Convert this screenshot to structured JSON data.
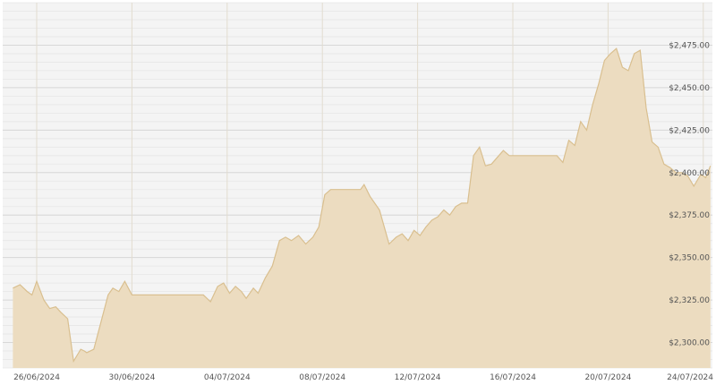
{
  "chart_data": {
    "type": "area",
    "title": "",
    "xlabel": "",
    "ylabel": "",
    "x_tick_labels": [
      "26/06/2024",
      "30/06/2024",
      "04/07/2024",
      "08/07/2024",
      "12/07/2024",
      "16/07/2024",
      "20/07/2024",
      "24/07/2024"
    ],
    "y_tick_labels": [
      "$2,300.00",
      "$2,325.00",
      "$2,350.00",
      "$2,375.00",
      "$2,400.00",
      "$2,425.00",
      "$2,450.00",
      "$2,475.00"
    ],
    "y_ticks": [
      2300,
      2325,
      2350,
      2375,
      2400,
      2425,
      2450,
      2475
    ],
    "ylim": [
      2285,
      2500
    ],
    "xlim_days": [
      -1,
      28.3
    ],
    "grid": true,
    "colors": {
      "fill": "#ecdcc0",
      "line": "#d9bf8f",
      "grid_major": "#d8d8d8",
      "grid_minor": "#e6e6e6",
      "background": "#f4f4f4",
      "vertical_grid": "#e2dccf"
    },
    "series": [
      {
        "x": [
          -1.0,
          -0.7,
          -0.4,
          -0.2,
          0.0,
          0.3,
          0.55,
          0.8,
          1.0,
          1.3,
          1.55,
          1.85,
          2.0,
          2.1,
          2.4,
          2.7,
          3.0,
          3.2,
          3.45,
          3.7,
          4.0,
          4.4,
          4.7,
          5.0,
          5.5,
          6.0,
          6.5,
          7.0,
          7.3,
          7.6,
          7.85,
          8.1,
          8.35,
          8.6,
          8.8,
          9.1,
          9.3,
          9.6,
          9.9,
          10.2,
          10.45,
          10.7,
          11.0,
          11.3,
          11.6,
          11.85,
          12.1,
          12.35,
          12.6,
          12.85,
          13.1,
          13.35,
          13.6,
          13.75,
          14.0,
          14.4,
          14.8,
          15.1,
          15.35,
          15.6,
          15.85,
          16.1,
          16.35,
          16.6,
          16.85,
          17.1,
          17.35,
          17.6,
          17.85,
          18.1,
          18.35,
          18.6,
          18.85,
          19.1,
          19.35,
          19.6,
          19.85,
          20.1,
          20.35,
          20.6,
          20.85,
          21.1,
          21.35,
          21.6,
          21.85,
          22.1,
          22.35,
          22.6,
          22.85,
          23.1,
          23.35,
          23.6,
          23.85,
          24.1,
          24.35,
          24.6,
          24.85,
          25.1,
          25.35,
          25.6,
          25.85,
          26.1,
          26.35,
          26.6,
          26.85,
          27.1,
          27.35,
          27.6,
          27.9,
          28.1,
          28.3
        ],
        "values": [
          2332,
          2334,
          2330,
          2328,
          2336,
          2325,
          2320,
          2321,
          2318,
          2314,
          2289,
          2296,
          2295,
          2294,
          2296,
          2312,
          2328,
          2332,
          2330,
          2336,
          2328,
          2328,
          2328,
          2328,
          2328,
          2328,
          2328,
          2328,
          2324,
          2333,
          2335,
          2329,
          2333,
          2330,
          2326,
          2332,
          2329,
          2338,
          2345,
          2360,
          2362,
          2360,
          2363,
          2358,
          2362,
          2368,
          2387,
          2390,
          2390,
          2390,
          2390,
          2390,
          2390,
          2393,
          2386,
          2378,
          2358,
          2362,
          2364,
          2360,
          2366,
          2363,
          2368,
          2372,
          2374,
          2378,
          2375,
          2380,
          2382,
          2382,
          2410,
          2415,
          2404,
          2405,
          2409,
          2413,
          2410,
          2410,
          2410,
          2410,
          2410,
          2410,
          2410,
          2410,
          2410,
          2406,
          2419,
          2416,
          2430,
          2425,
          2440,
          2452,
          2466,
          2470,
          2473,
          2462,
          2460,
          2470,
          2472,
          2438,
          2418,
          2415,
          2405,
          2403,
          2400,
          2400,
          2398,
          2392,
          2399,
          2397,
          2404
        ]
      }
    ]
  }
}
